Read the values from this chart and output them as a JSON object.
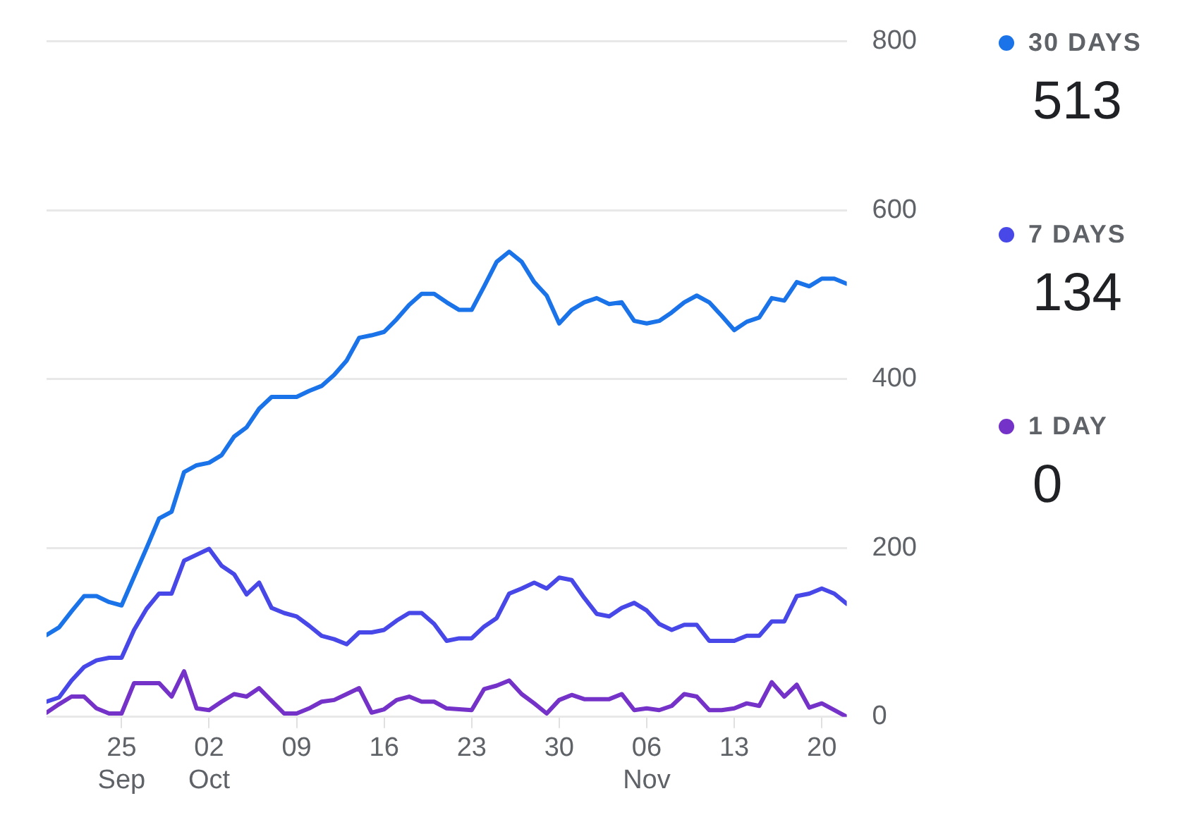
{
  "chart_data": {
    "type": "line",
    "x": [
      "--09-19",
      "--09-20",
      "--09-21",
      "--09-22",
      "--09-23",
      "--09-24",
      "--09-25",
      "--09-26",
      "--09-27",
      "--09-28",
      "--09-29",
      "--09-30",
      "--10-01",
      "--10-02",
      "--10-03",
      "--10-04",
      "--10-05",
      "--10-06",
      "--10-07",
      "--10-08",
      "--10-09",
      "--10-10",
      "--10-11",
      "--10-12",
      "--10-13",
      "--10-14",
      "--10-15",
      "--10-16",
      "--10-17",
      "--10-18",
      "--10-19",
      "--10-20",
      "--10-21",
      "--10-22",
      "--10-23",
      "--10-24",
      "--10-25",
      "--10-26",
      "--10-27",
      "--10-28",
      "--10-29",
      "--10-30",
      "--10-31",
      "--11-01",
      "--11-02",
      "--11-03",
      "--11-04",
      "--11-05",
      "--11-06",
      "--11-07",
      "--11-08",
      "--11-09",
      "--11-10",
      "--11-11",
      "--11-12",
      "--11-13",
      "--11-14",
      "--11-15",
      "--11-16",
      "--11-17",
      "--11-18",
      "--11-19",
      "--11-20",
      "--11-21",
      "--11-22"
    ],
    "series": [
      {
        "name": "30 DAYS",
        "color": "#1a73e8",
        "values": [
          97,
          106,
          125,
          143,
          143,
          136,
          132,
          166,
          200,
          235,
          243,
          290,
          298,
          301,
          310,
          332,
          343,
          365,
          379,
          379,
          379,
          386,
          392,
          405,
          422,
          449,
          452,
          456,
          471,
          488,
          501,
          501,
          491,
          482,
          482,
          510,
          539,
          551,
          539,
          515,
          499,
          466,
          482,
          491,
          496,
          489,
          491,
          469,
          466,
          469,
          479,
          491,
          499,
          491,
          475,
          458,
          468,
          473,
          496,
          493,
          515,
          510,
          519,
          519,
          513
        ]
      },
      {
        "name": "7 DAYS",
        "color": "#4848e8",
        "values": [
          18,
          23,
          43,
          59,
          67,
          70,
          70,
          103,
          128,
          146,
          146,
          185,
          192,
          199,
          179,
          169,
          145,
          159,
          129,
          123,
          119,
          108,
          96,
          92,
          86,
          100,
          100,
          103,
          114,
          123,
          123,
          110,
          90,
          93,
          93,
          107,
          117,
          146,
          152,
          159,
          152,
          165,
          162,
          141,
          122,
          119,
          129,
          135,
          126,
          110,
          103,
          109,
          109,
          90,
          90,
          90,
          96,
          96,
          113,
          113,
          143,
          146,
          152,
          146,
          134
        ]
      },
      {
        "name": "1 DAY",
        "color": "#7432c8",
        "values": [
          5,
          15,
          24,
          24,
          10,
          4,
          4,
          40,
          40,
          40,
          24,
          54,
          10,
          8,
          18,
          27,
          24,
          34,
          19,
          4,
          4,
          10,
          18,
          20,
          27,
          34,
          5,
          9,
          20,
          24,
          18,
          18,
          10,
          9,
          8,
          33,
          37,
          43,
          27,
          16,
          4,
          20,
          26,
          21,
          21,
          21,
          27,
          8,
          10,
          8,
          13,
          27,
          24,
          8,
          8,
          10,
          16,
          13,
          41,
          24,
          38,
          11,
          16,
          8,
          0
        ]
      }
    ],
    "annotations": [
      "513",
      "134",
      "0"
    ],
    "xlim": [
      "--09-19",
      "--11-22"
    ],
    "xticks": [
      {
        "value": "--09-25",
        "label": "25\nSep"
      },
      {
        "value": "--10-02",
        "label": "02\nOct"
      },
      {
        "value": "--10-09",
        "label": "09"
      },
      {
        "value": "--10-16",
        "label": "16"
      },
      {
        "value": "--10-23",
        "label": "23"
      },
      {
        "value": "--10-30",
        "label": "30"
      },
      {
        "value": "--11-06",
        "label": "06\nNov"
      },
      {
        "value": "--11-13",
        "label": "13"
      },
      {
        "value": "--11-20",
        "label": "20"
      }
    ],
    "ylim": [
      0,
      800
    ],
    "yticks": [
      0,
      200,
      400,
      600,
      800
    ],
    "grid": "y",
    "legend": "right",
    "marker": "none",
    "line_style": "solid"
  }
}
